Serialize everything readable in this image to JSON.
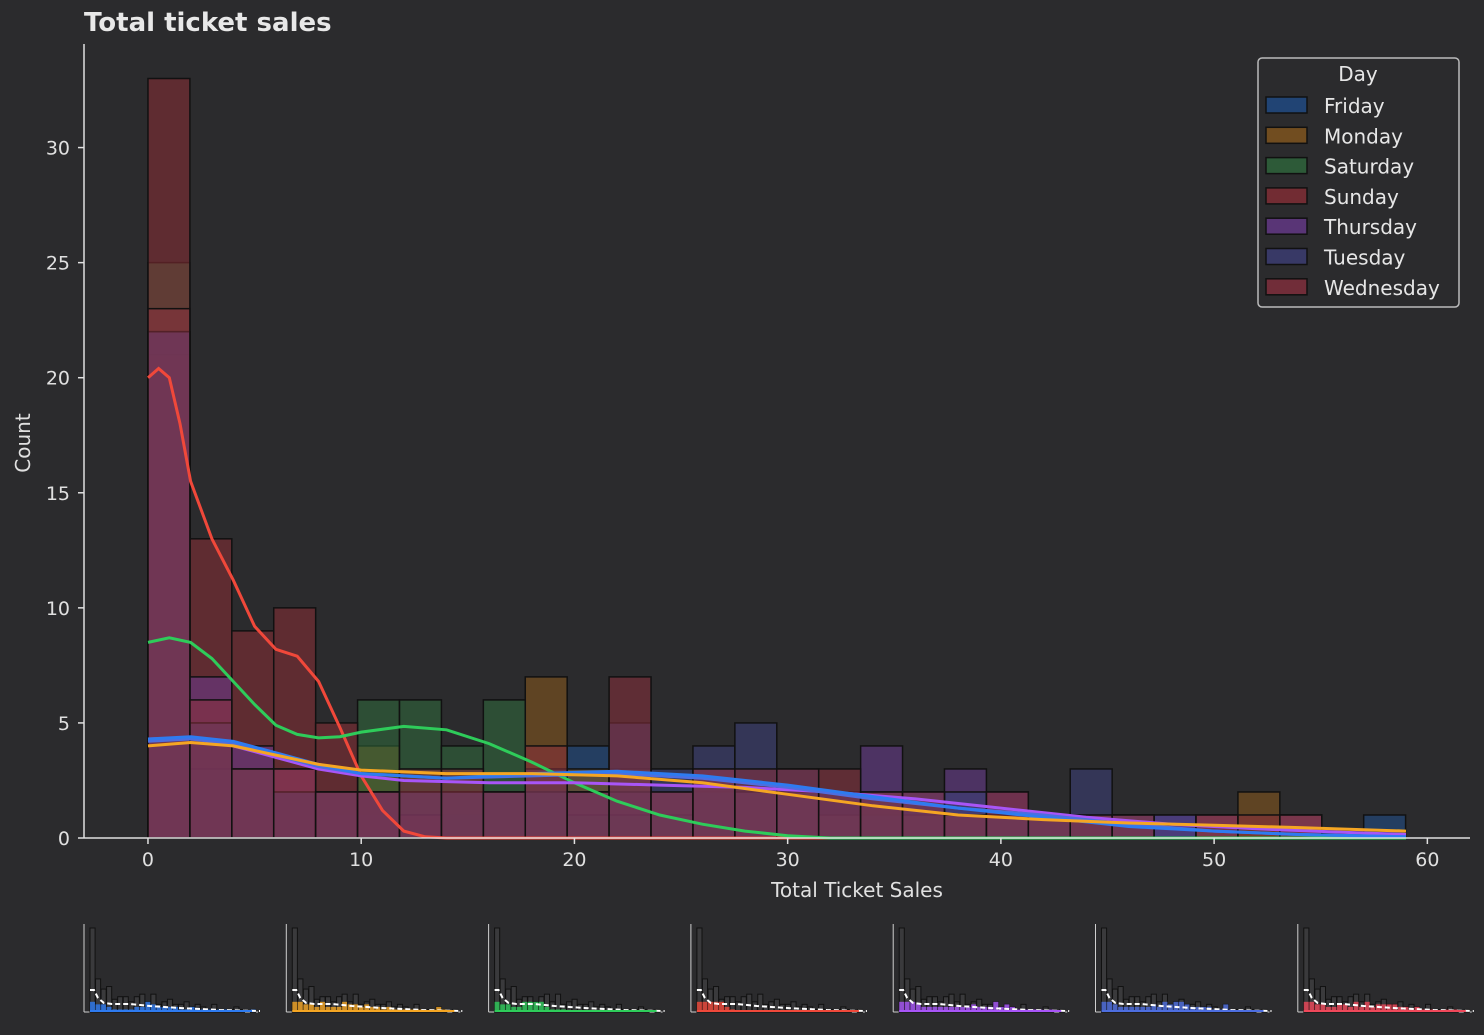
{
  "chart_data": {
    "type": "histogram",
    "title": "Total ticket sales",
    "xlabel": "Total Ticket Sales",
    "ylabel": "Count",
    "xlim": [
      -3,
      62
    ],
    "ylim": [
      0,
      34.5
    ],
    "xticks": [
      0,
      10,
      20,
      30,
      40,
      50,
      60
    ],
    "yticks": [
      0,
      5,
      10,
      15,
      20,
      25,
      30
    ],
    "bin_width": 1.966,
    "bin_starts": [
      0,
      1.966,
      3.932,
      5.898,
      7.864,
      9.83,
      11.796,
      13.762,
      15.728,
      17.694,
      19.66,
      21.626,
      23.592,
      25.558,
      27.524,
      29.49,
      31.456,
      33.422,
      35.388,
      37.354,
      39.32,
      41.286,
      43.252,
      45.218,
      47.184,
      49.15,
      51.116,
      53.082,
      55.048,
      57.014
    ],
    "legend": {
      "title": "Day",
      "placement": "upper right"
    },
    "series": [
      {
        "name": "Friday",
        "color": "#1f4e8c",
        "kde_color": "#2e7bf0",
        "counts": [
          22,
          3,
          3,
          2,
          1,
          1,
          1,
          1,
          2,
          2,
          4,
          3,
          2,
          2,
          2,
          2,
          1,
          1,
          2,
          1,
          1,
          1,
          0,
          1,
          1,
          0,
          0,
          0,
          0,
          1
        ]
      },
      {
        "name": "Monday",
        "color": "#8a5a1c",
        "kde_color": "#f5a623",
        "counts": [
          21,
          5,
          3,
          3,
          2,
          4,
          2,
          2,
          2,
          7,
          3,
          3,
          2,
          3,
          2,
          2,
          1,
          2,
          1,
          1,
          1,
          1,
          1,
          1,
          0,
          1,
          2,
          1,
          0,
          0
        ]
      },
      {
        "name": "Saturday",
        "color": "#2f6b3c",
        "kde_color": "#2ecc5a",
        "counts": [
          25,
          3,
          3,
          2,
          2,
          6,
          6,
          4,
          6,
          2,
          1,
          1,
          1,
          0,
          0,
          0,
          0,
          0,
          0,
          0,
          0,
          0,
          0,
          0,
          0,
          0,
          0,
          0,
          0,
          0
        ]
      },
      {
        "name": "Sunday",
        "color": "#8b2e35",
        "kde_color": "#f0483a",
        "counts": [
          33,
          13,
          9,
          10,
          5,
          2,
          1,
          0,
          0,
          0,
          0,
          0,
          0,
          0,
          0,
          0,
          0,
          0,
          0,
          0,
          0,
          0,
          0,
          0,
          0,
          0,
          0,
          0,
          0,
          0
        ]
      },
      {
        "name": "Thursday",
        "color": "#6a3a8f",
        "kde_color": "#a855f7",
        "counts": [
          22,
          7,
          4,
          3,
          2,
          2,
          2,
          2,
          2,
          2,
          2,
          2,
          2,
          3,
          2,
          2,
          2,
          4,
          2,
          3,
          2,
          1,
          1,
          1,
          1,
          1,
          0,
          1,
          0,
          0
        ]
      },
      {
        "name": "Tuesday",
        "color": "#3d3f7a",
        "kde_color": "#4d6ee0",
        "counts": [
          22,
          5,
          3,
          2,
          2,
          2,
          2,
          2,
          2,
          3,
          2,
          5,
          3,
          4,
          5,
          3,
          2,
          2,
          2,
          2,
          1,
          1,
          3,
          1,
          0,
          0,
          0,
          0,
          0,
          0
        ]
      },
      {
        "name": "Wednesday",
        "color": "#8a2f3d",
        "kde_color": "#f0483a",
        "counts": [
          23,
          6,
          3,
          3,
          2,
          2,
          3,
          3,
          2,
          4,
          2,
          7,
          2,
          3,
          3,
          3,
          3,
          2,
          2,
          1,
          2,
          1,
          1,
          1,
          0,
          1,
          1,
          1,
          0,
          0
        ]
      }
    ],
    "kde": [
      {
        "name": "Sunday",
        "color": "#f0483a",
        "points": [
          [
            0,
            20
          ],
          [
            0.5,
            20.4
          ],
          [
            1,
            20
          ],
          [
            1.5,
            18
          ],
          [
            2,
            15.5
          ],
          [
            3,
            13
          ],
          [
            4,
            11.2
          ],
          [
            5,
            9.2
          ],
          [
            6,
            8.2
          ],
          [
            7,
            7.9
          ],
          [
            8,
            6.8
          ],
          [
            9,
            4.8
          ],
          [
            10,
            2.7
          ],
          [
            11,
            1.2
          ],
          [
            12,
            0.3
          ],
          [
            13,
            0.05
          ],
          [
            14,
            0
          ],
          [
            59,
            0
          ]
        ]
      },
      {
        "name": "Saturday",
        "color": "#2ecc5a",
        "points": [
          [
            0,
            8.5
          ],
          [
            1,
            8.7
          ],
          [
            2,
            8.5
          ],
          [
            3,
            7.8
          ],
          [
            4,
            6.8
          ],
          [
            5,
            5.8
          ],
          [
            6,
            4.9
          ],
          [
            7,
            4.5
          ],
          [
            8,
            4.35
          ],
          [
            9,
            4.4
          ],
          [
            10,
            4.6
          ],
          [
            12,
            4.85
          ],
          [
            14,
            4.7
          ],
          [
            16,
            4.1
          ],
          [
            18,
            3.3
          ],
          [
            20,
            2.4
          ],
          [
            22,
            1.6
          ],
          [
            24,
            1.0
          ],
          [
            26,
            0.6
          ],
          [
            28,
            0.3
          ],
          [
            30,
            0.1
          ],
          [
            32,
            0
          ],
          [
            59,
            0
          ]
        ]
      },
      {
        "name": "Thursday",
        "color": "#a855f7",
        "points": [
          [
            0,
            4.3
          ],
          [
            2,
            4.35
          ],
          [
            4,
            4.0
          ],
          [
            6,
            3.5
          ],
          [
            8,
            3.0
          ],
          [
            10,
            2.7
          ],
          [
            12,
            2.5
          ],
          [
            16,
            2.4
          ],
          [
            20,
            2.4
          ],
          [
            24,
            2.3
          ],
          [
            28,
            2.2
          ],
          [
            32,
            2.0
          ],
          [
            36,
            1.7
          ],
          [
            40,
            1.3
          ],
          [
            44,
            0.9
          ],
          [
            48,
            0.6
          ],
          [
            52,
            0.4
          ],
          [
            56,
            0.25
          ],
          [
            59,
            0.15
          ]
        ]
      },
      {
        "name": "Tuesday",
        "color": "#4d6ee0",
        "points": [
          [
            0,
            4.2
          ],
          [
            2,
            4.3
          ],
          [
            4,
            4.1
          ],
          [
            6,
            3.6
          ],
          [
            8,
            3.1
          ],
          [
            10,
            2.8
          ],
          [
            14,
            2.6
          ],
          [
            18,
            2.7
          ],
          [
            22,
            2.8
          ],
          [
            26,
            2.6
          ],
          [
            30,
            2.2
          ],
          [
            34,
            1.7
          ],
          [
            38,
            1.3
          ],
          [
            42,
            1.0
          ],
          [
            46,
            0.6
          ],
          [
            50,
            0.3
          ],
          [
            54,
            0.15
          ],
          [
            59,
            0.05
          ]
        ]
      },
      {
        "name": "Friday",
        "color": "#2e7bf0",
        "points": [
          [
            0,
            4.3
          ],
          [
            2,
            4.4
          ],
          [
            4,
            4.2
          ],
          [
            6,
            3.7
          ],
          [
            8,
            3.2
          ],
          [
            10,
            2.8
          ],
          [
            14,
            2.6
          ],
          [
            18,
            2.8
          ],
          [
            22,
            2.9
          ],
          [
            26,
            2.7
          ],
          [
            30,
            2.3
          ],
          [
            34,
            1.8
          ],
          [
            38,
            1.3
          ],
          [
            42,
            0.9
          ],
          [
            46,
            0.5
          ],
          [
            50,
            0.3
          ],
          [
            54,
            0.15
          ],
          [
            59,
            0.05
          ]
        ]
      },
      {
        "name": "Monday",
        "color": "#f5a623",
        "points": [
          [
            0,
            4.0
          ],
          [
            2,
            4.15
          ],
          [
            4,
            4.0
          ],
          [
            6,
            3.6
          ],
          [
            8,
            3.2
          ],
          [
            10,
            2.95
          ],
          [
            14,
            2.8
          ],
          [
            18,
            2.8
          ],
          [
            22,
            2.7
          ],
          [
            26,
            2.4
          ],
          [
            30,
            1.9
          ],
          [
            34,
            1.4
          ],
          [
            38,
            1.0
          ],
          [
            42,
            0.8
          ],
          [
            46,
            0.65
          ],
          [
            50,
            0.55
          ],
          [
            54,
            0.45
          ],
          [
            59,
            0.3
          ]
        ]
      }
    ],
    "small_multiples": [
      {
        "name": "Friday",
        "color": "#2e7bf0"
      },
      {
        "name": "Monday",
        "color": "#f5a623"
      },
      {
        "name": "Saturday",
        "color": "#2ecc5a"
      },
      {
        "name": "Sunday",
        "color": "#f0483a"
      },
      {
        "name": "Thursday",
        "color": "#a855f7"
      },
      {
        "name": "Tuesday",
        "color": "#4d6ee0"
      },
      {
        "name": "Wednesday",
        "color": "#f0485a"
      }
    ]
  }
}
